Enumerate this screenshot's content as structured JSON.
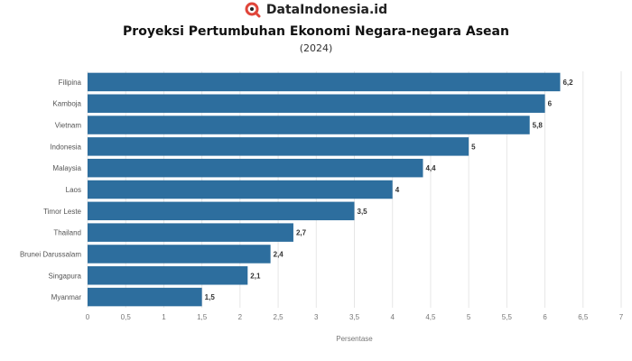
{
  "brand": {
    "name": "DataIndonesia.id",
    "accent": "#e0453a"
  },
  "chart_data": {
    "type": "bar",
    "orientation": "horizontal",
    "title": "Proyeksi Pertumbuhan Ekonomi Negara-negara Asean",
    "subtitle": "(2024)",
    "categories": [
      "Filipina",
      "Kamboja",
      "Vietnam",
      "Indonesia",
      "Malaysia",
      "Laos",
      "Timor Leste",
      "Thailand",
      "Brunei Darussalam",
      "Singapura",
      "Myanmar"
    ],
    "values": [
      6.2,
      6,
      5.8,
      5,
      4.4,
      4,
      3.5,
      2.7,
      2.4,
      2.1,
      1.5
    ],
    "value_labels": [
      "6,2",
      "6",
      "5,8",
      "5",
      "4,4",
      "4",
      "3,5",
      "2,7",
      "2,4",
      "2,1",
      "1,5"
    ],
    "xlabel": "Persentase",
    "xlim": [
      0,
      7
    ],
    "x_ticks": [
      0,
      0.5,
      1,
      1.5,
      2,
      2.5,
      3,
      3.5,
      4,
      4.5,
      5,
      5.5,
      6,
      6.5,
      7
    ],
    "x_tick_labels": [
      "0",
      "0,5",
      "1",
      "1,5",
      "2",
      "2,5",
      "3",
      "3,5",
      "4",
      "4,5",
      "5",
      "5,5",
      "6",
      "6,5",
      "7"
    ],
    "bar_color": "#2d6e9e",
    "grid": true
  }
}
